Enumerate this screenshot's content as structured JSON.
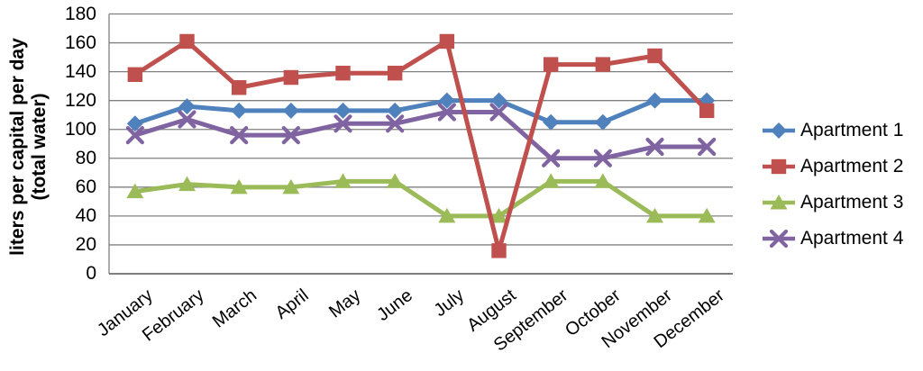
{
  "chart_data": {
    "type": "line",
    "title": "",
    "categories": [
      "January",
      "February",
      "March",
      "April",
      "May",
      "June",
      "July",
      "August",
      "September",
      "October",
      "November",
      "December"
    ],
    "series": [
      {
        "name": "Apartment 1",
        "marker": "diamond",
        "color": "#4F81BD",
        "values": [
          104,
          116,
          113,
          113,
          113,
          113,
          120,
          120,
          105,
          105,
          120,
          120
        ]
      },
      {
        "name": "Apartment 2",
        "marker": "square",
        "color": "#C0504D",
        "values": [
          138,
          161,
          129,
          136,
          139,
          139,
          161,
          16,
          145,
          145,
          151,
          113
        ]
      },
      {
        "name": "Apartment 3",
        "marker": "triangle",
        "color": "#9BBB59",
        "values": [
          57,
          62,
          60,
          60,
          64,
          64,
          40,
          40,
          64,
          64,
          40,
          40
        ]
      },
      {
        "name": "Apartment 4",
        "marker": "x",
        "color": "#8064A2",
        "values": [
          96,
          107,
          96,
          96,
          104,
          104,
          112,
          112,
          80,
          80,
          88,
          88
        ]
      }
    ],
    "xlabel": "",
    "ylabel_line1": "liters per capital per day",
    "ylabel_line2": "(total water)",
    "ylim": [
      0,
      180
    ],
    "ytick_step": 20,
    "grid": true,
    "legend_position": "right",
    "x_tick_rotation_deg": -38,
    "gridline_color": "#808080",
    "axis_color": "#7F7F7F",
    "background_color": "#FFFFFF",
    "draw_order": [
      0,
      2,
      3,
      1
    ]
  }
}
